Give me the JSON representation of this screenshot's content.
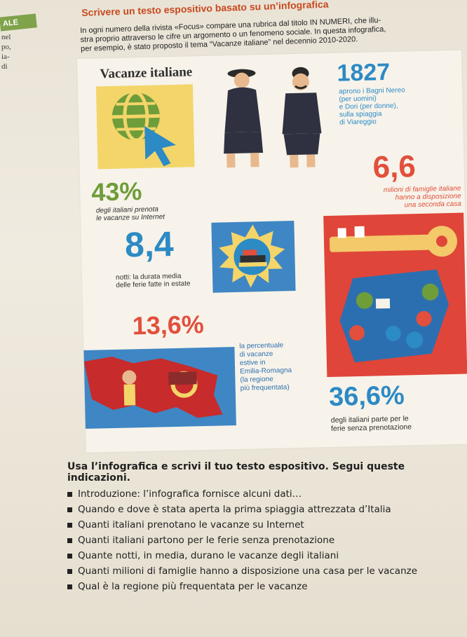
{
  "header": {
    "badge": "ALE",
    "title": "Scrivere un testo espositivo basato su un’infografica",
    "intro_lines": [
      "In ogni numero della rivista «Focus» compare una rubrica dal titolo IN NUMERI, che illu-",
      "stra proprio attraverso le cifre un argomento o un fenomeno sociale. In questa infografica,",
      "per esempio, è stato proposto il tema “Vacanze italiane” nel decennio 2010-2020."
    ],
    "margin_words": [
      "nel",
      "po,",
      "ia-",
      "di"
    ]
  },
  "infographic": {
    "title": "Vacanze italiane",
    "stats": [
      {
        "value": "1827",
        "text": "aprono i Bagni Nereo\n(per uomini)\ne Dori (per donne),\nsulla spiaggia\ndi Viareggio"
      },
      {
        "value": "6,6",
        "text": "milioni di famiglie italiane\nhanno a disposizione\nuna seconda casa"
      },
      {
        "value": "43%",
        "text": "degli italiani prenota\nle vacanze su Internet"
      },
      {
        "value": "8,4",
        "text": "notti: la durata media\ndelle ferie fatte in estate"
      },
      {
        "value": "13,6%",
        "text": "la percentuale\ndi vacanze\nestive in\nEmilia-Romagna\n(la regione\npiù frequentata)"
      },
      {
        "value": "36,6%",
        "text": "degli italiani parte per le\nferie senza prenotazione"
      }
    ],
    "icons": [
      "globe-cursor-icon",
      "bathers-illustration",
      "sun-ferry-icon",
      "key-house-icon",
      "travel-icons-cube",
      "emilia-romagna-map"
    ],
    "colors": {
      "blue": "#2c8ac5",
      "red": "#e24f3c",
      "green": "#6e9d3a",
      "yellow": "#f3d56a"
    }
  },
  "instructions": {
    "heading": "Usa l’infografica e scrivi il tuo testo espositivo. Segui queste indicazioni.",
    "items": [
      "Introduzione: l’infografica fornisce alcuni dati…",
      "Quando e dove è stata aperta la prima spiaggia attrezzata d’Italia",
      "Quanti italiani prenotano le vacanze su Internet",
      "Quanti italiani partono per le ferie senza prenotazione",
      "Quante notti, in media, durano le vacanze degli italiani",
      "Quanti milioni di famiglie hanno a disposizione una casa per le vacanze",
      "Qual è la regione più frequentata per le vacanze"
    ]
  }
}
